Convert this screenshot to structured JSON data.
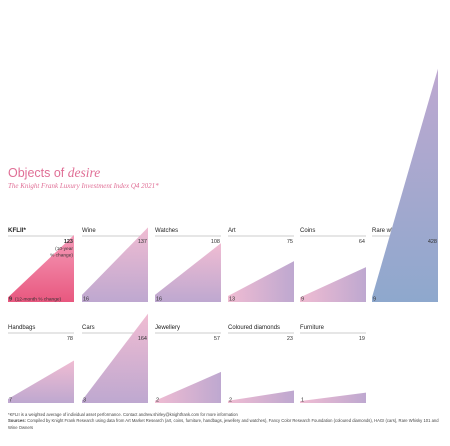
{
  "title": {
    "prefix": "Objects of ",
    "emphasis": "desire"
  },
  "subtitle": "The Knight Frank Luxury Investment Index Q4 2021*",
  "chart_data": {
    "type": "area",
    "title": "Objects of desire",
    "subtitle": "The Knight Frank Luxury Investment Index Q4 2021*",
    "series": [
      {
        "name": "KFLII*",
        "ten_year_change": 123,
        "twelve_month_change": 9
      },
      {
        "name": "Wine",
        "ten_year_change": 137,
        "twelve_month_change": 16
      },
      {
        "name": "Watches",
        "ten_year_change": 108,
        "twelve_month_change": 16
      },
      {
        "name": "Art",
        "ten_year_change": 75,
        "twelve_month_change": 13
      },
      {
        "name": "Coins",
        "ten_year_change": 64,
        "twelve_month_change": 9
      },
      {
        "name": "Rare whisky",
        "ten_year_change": 428,
        "twelve_month_change": 9
      },
      {
        "name": "Handbags",
        "ten_year_change": 78,
        "twelve_month_change": 7
      },
      {
        "name": "Cars",
        "ten_year_change": 164,
        "twelve_month_change": 3
      },
      {
        "name": "Jewellery",
        "ten_year_change": 57,
        "twelve_month_change": 2
      },
      {
        "name": "Coloured diamonds",
        "ten_year_change": 23,
        "twelve_month_change": 2
      },
      {
        "name": "Furniture",
        "ten_year_change": 19,
        "twelve_month_change": 1
      }
    ],
    "annotations": {
      "ten_year": "(10-year % change)",
      "twelve_month": "(12-month % change)"
    },
    "colors": {
      "kflii_top": "#f59ab8",
      "kflii_bottom": "#e8587f",
      "pink": "#f0bcd2",
      "mauve": "#bea8d0",
      "blue": "#8ea8cd",
      "title": "#e06f96"
    }
  },
  "footnote": {
    "line1": "*KFLII is a weighted average of individual asset performance. Contact andrew.shirley@knightfrank.com for more information",
    "sources_label": "Sources:",
    "sources_text": " Compiled by Knight Frank Research using data from Art Market Research (art, coins, furniture, handbags, jewellery and watches), Fancy Color Research Foundation (coloured diamonds), HAGI (cars), Rare Whisky 101 and Wine Owners"
  }
}
